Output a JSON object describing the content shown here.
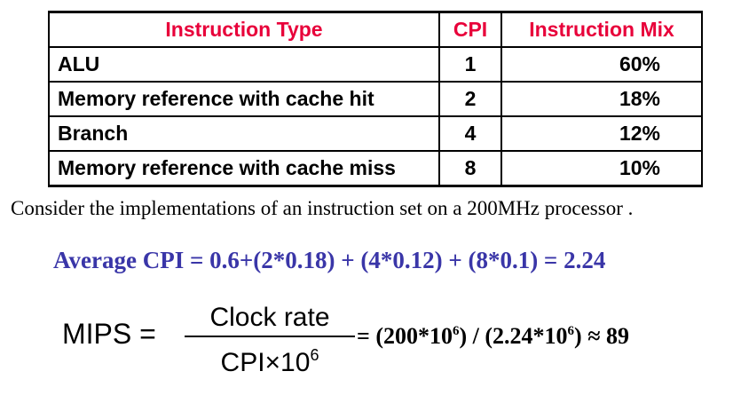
{
  "table": {
    "headers": {
      "type": "Instruction Type",
      "cpi": "CPI",
      "mix": "Instruction Mix"
    },
    "rows": [
      {
        "type": "ALU",
        "cpi": "1",
        "mix": "60%"
      },
      {
        "type": "Memory reference with cache hit",
        "cpi": "2",
        "mix": "18%"
      },
      {
        "type": "Branch",
        "cpi": "4",
        "mix": "12%"
      },
      {
        "type": "Memory reference with cache miss",
        "cpi": "8",
        "mix": "10%"
      }
    ],
    "header_color": "#e8003a"
  },
  "text": {
    "consider": "Consider the implementations of an instruction set on a 200MHz processor .",
    "average_cpi": "Average CPI = 0.6+(2*0.18) + (4*0.12) + (8*0.1) = 2.24",
    "average_color": "#3a36a8"
  },
  "formula": {
    "lhs": "MIPS =",
    "numerator": "Clock rate",
    "denominator_base": "CPI×10",
    "denominator_exp": "6",
    "rhs_part1": "= (200*10",
    "rhs_exp1": "6",
    "rhs_part2": ") / (2.24*10",
    "rhs_exp2": "6",
    "rhs_part3": ") ≈ 89"
  }
}
